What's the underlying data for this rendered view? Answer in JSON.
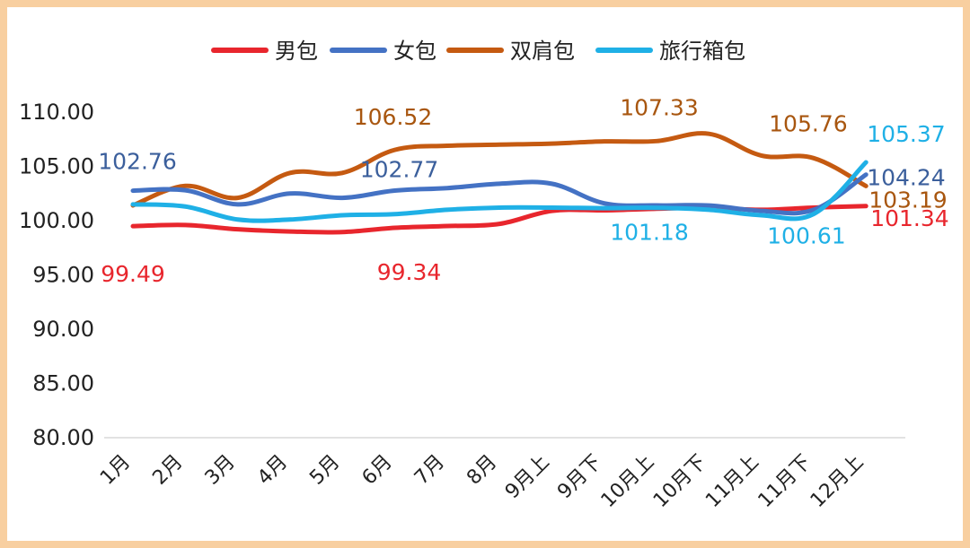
{
  "chart_data": {
    "type": "line",
    "title": "",
    "xlabel": "",
    "ylabel": "",
    "ylim": [
      80,
      110
    ],
    "yticks": [
      80,
      85,
      90,
      95,
      100,
      105,
      110
    ],
    "ytick_labels": [
      "80.00",
      "85.00",
      "90.00",
      "95.00",
      "100.00",
      "105.00",
      "110.00"
    ],
    "legend_position": "top",
    "categories": [
      "1月",
      "2月",
      "3月",
      "4月",
      "5月",
      "6月",
      "7月",
      "8月",
      "9月上",
      "9月下",
      "10月上",
      "10月下",
      "11月上",
      "11月下",
      "12月上"
    ],
    "series": [
      {
        "name": "男包",
        "color": "#e8262d",
        "values": [
          99.49,
          99.6,
          99.2,
          99.0,
          98.95,
          99.34,
          99.5,
          99.7,
          100.9,
          100.95,
          101.1,
          101.18,
          101.0,
          101.2,
          101.34
        ],
        "labels": [
          {
            "index": 0,
            "text": "99.49"
          },
          {
            "index": 5,
            "text": "99.34"
          },
          {
            "index": 14,
            "text": "101.34"
          }
        ]
      },
      {
        "name": "女包",
        "color": "#4472c4",
        "values": [
          102.76,
          102.8,
          101.5,
          102.5,
          102.1,
          102.77,
          103.0,
          103.4,
          103.4,
          101.6,
          101.4,
          101.4,
          100.9,
          101.0,
          104.24
        ],
        "labels": [
          {
            "index": 0,
            "text": "102.76"
          },
          {
            "index": 5,
            "text": "102.77"
          },
          {
            "index": 14,
            "text": "104.24"
          }
        ]
      },
      {
        "name": "双肩包",
        "color": "#c55a11",
        "values": [
          101.4,
          103.2,
          102.1,
          104.4,
          104.4,
          106.52,
          106.9,
          107.0,
          107.1,
          107.3,
          107.33,
          108.0,
          106.0,
          105.76,
          103.19
        ],
        "labels": [
          {
            "index": 5,
            "text": "106.52"
          },
          {
            "index": 10,
            "text": "107.33"
          },
          {
            "index": 13,
            "text": "105.76"
          },
          {
            "index": 14,
            "text": "103.19"
          }
        ]
      },
      {
        "name": "旅行箱包",
        "color": "#1fb0e6",
        "values": [
          101.5,
          101.3,
          100.1,
          100.1,
          100.5,
          100.6,
          101.0,
          101.2,
          101.2,
          101.15,
          101.18,
          101.0,
          100.5,
          100.61,
          105.37
        ],
        "labels": [
          {
            "index": 10,
            "text": "101.18"
          },
          {
            "index": 13,
            "text": "100.61"
          },
          {
            "index": 14,
            "text": "105.37"
          }
        ]
      }
    ]
  }
}
